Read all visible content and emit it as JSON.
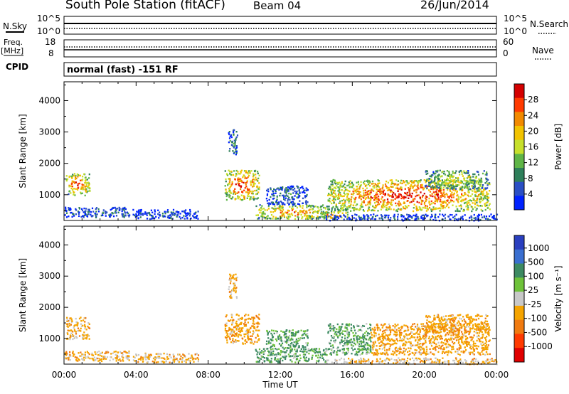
{
  "header": {
    "station": "South Pole Station (fitACF)",
    "beam": "Beam 04",
    "date": "26/Jun/2014"
  },
  "summary_panels": {
    "nsky_label": "N.Sky",
    "nsky_ticks": [
      "10^5",
      "10^0"
    ],
    "nsearch_label": "N.Search",
    "nsearch_ticks": [
      "10^5",
      "10^0"
    ],
    "freq_label": "Freq.",
    "freq_unit": "[MHz]",
    "freq_ticks": [
      "18",
      "8"
    ],
    "nave_label": "Nave",
    "nave_ticks": [
      "60",
      "0"
    ],
    "cpid_label": "CPID",
    "cpid_text": "normal (fast) -151 RF"
  },
  "chart_data": [
    {
      "type": "heatmap",
      "title": "",
      "ylabel": "Slant Range [km]",
      "xlabel": "",
      "ylim": [
        180,
        4600
      ],
      "yticks": [
        1000,
        2000,
        3000,
        4000
      ],
      "xlim": [
        0,
        24
      ],
      "colorbar": {
        "label": "Power [dB]",
        "ticks": [
          4,
          8,
          12,
          16,
          20,
          24,
          28
        ],
        "range": [
          0,
          32
        ],
        "colors": [
          "#0022ff",
          "#2a4fc4",
          "#2e7f5a",
          "#5fb547",
          "#c7e02c",
          "#f2c300",
          "#f28a00",
          "#ff3a00",
          "#d40000"
        ]
      },
      "regions": [
        {
          "t0": 0.1,
          "t1": 1.4,
          "r0": 1000,
          "r1": 1700,
          "level": 0.55
        },
        {
          "t0": 0.0,
          "t1": 3.6,
          "r0": 300,
          "r1": 620,
          "level": 0.15
        },
        {
          "t0": 3.8,
          "t1": 7.5,
          "r0": 250,
          "r1": 550,
          "level": 0.1
        },
        {
          "t0": 8.9,
          "t1": 10.8,
          "r0": 850,
          "r1": 1800,
          "level": 0.6
        },
        {
          "t0": 9.1,
          "t1": 9.6,
          "r0": 2300,
          "r1": 3100,
          "level": 0.2
        },
        {
          "t0": 10.6,
          "t1": 14.6,
          "r0": 250,
          "r1": 700,
          "level": 0.5
        },
        {
          "t0": 11.2,
          "t1": 13.5,
          "r0": 700,
          "r1": 1300,
          "level": 0.15
        },
        {
          "t0": 14.6,
          "t1": 23.6,
          "r0": 500,
          "r1": 1500,
          "level": 0.6
        },
        {
          "t0": 14.2,
          "t1": 15.8,
          "r0": 250,
          "r1": 500,
          "level": 0.55
        },
        {
          "t0": 20.0,
          "t1": 23.5,
          "r0": 1200,
          "r1": 1800,
          "level": 0.35
        },
        {
          "t0": 14.5,
          "t1": 24.0,
          "r0": 200,
          "r1": 400,
          "level": 0.1
        }
      ]
    },
    {
      "type": "heatmap",
      "title": "",
      "ylabel": "Slant Range [km]",
      "xlabel": "Time UT",
      "ylim": [
        180,
        4600
      ],
      "yticks": [
        1000,
        2000,
        3000,
        4000
      ],
      "xlim": [
        0,
        24
      ],
      "xticks": [
        "00:00",
        "04:00",
        "08:00",
        "12:00",
        "16:00",
        "20:00",
        "00:00"
      ],
      "colorbar": {
        "label": "Velocity [m s⁻¹]",
        "ticks": [
          "1000",
          "500",
          "100",
          "25",
          "-25",
          "-100",
          "-500",
          "-1000"
        ],
        "range": [
          -1200,
          1200
        ],
        "colors": [
          "#2a3fbf",
          "#3a6fd0",
          "#3d8a62",
          "#6ec23a",
          "#c8c8c8",
          "#f5a400",
          "#f07a10",
          "#ff3a00",
          "#e00000"
        ]
      },
      "regions": [
        {
          "t0": 0.1,
          "t1": 1.4,
          "r0": 1000,
          "r1": 1700,
          "level": -100
        },
        {
          "t0": 0.0,
          "t1": 3.6,
          "r0": 300,
          "r1": 620,
          "level": -100
        },
        {
          "t0": 3.8,
          "t1": 7.5,
          "r0": 250,
          "r1": 550,
          "level": -100
        },
        {
          "t0": 8.9,
          "t1": 10.8,
          "r0": 850,
          "r1": 1800,
          "level": -150
        },
        {
          "t0": 9.1,
          "t1": 9.6,
          "r0": 2300,
          "r1": 3100,
          "level": -100
        },
        {
          "t0": 10.6,
          "t1": 14.6,
          "r0": 250,
          "r1": 700,
          "level": 150
        },
        {
          "t0": 11.2,
          "t1": 13.5,
          "r0": 700,
          "r1": 1300,
          "level": 150
        },
        {
          "t0": 14.6,
          "t1": 17.0,
          "r0": 500,
          "r1": 1500,
          "level": 150
        },
        {
          "t0": 17.0,
          "t1": 23.6,
          "r0": 500,
          "r1": 1500,
          "level": -150
        },
        {
          "t0": 20.0,
          "t1": 23.5,
          "r0": 1200,
          "r1": 1800,
          "level": -150
        },
        {
          "t0": 14.5,
          "t1": 24.0,
          "r0": 200,
          "r1": 400,
          "level": -50
        }
      ]
    }
  ]
}
